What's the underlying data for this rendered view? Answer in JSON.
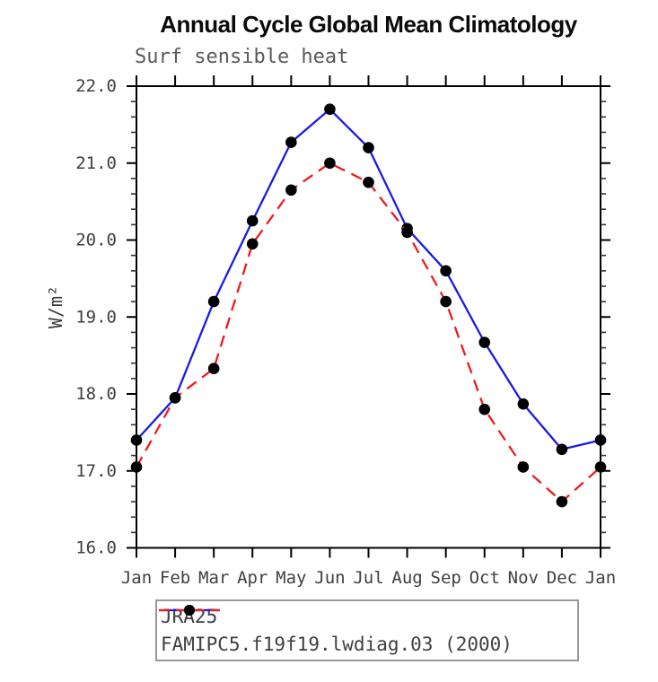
{
  "chart_data": {
    "type": "line",
    "title": "Annual Cycle Global Mean Climatology",
    "subtitle": "Surf sensible heat",
    "ylabel": "W/m²",
    "xlabel": "",
    "x": [
      "Jan",
      "Feb",
      "Mar",
      "Apr",
      "May",
      "Jun",
      "Jul",
      "Aug",
      "Sep",
      "Oct",
      "Nov",
      "Dec",
      "Jan"
    ],
    "ylim": [
      16.0,
      22.0
    ],
    "ytick_step": 1.0,
    "yminor_step": 0.2,
    "ytick_labels": [
      "16.0",
      "17.0",
      "18.0",
      "19.0",
      "20.0",
      "21.0",
      "22.0"
    ],
    "grid": false,
    "legend_position": "bottom",
    "series": [
      {
        "name": "JRA25",
        "color": "#1a1ae8",
        "style": "solid",
        "marker": "dot",
        "marker_color": "#000000",
        "values": [
          17.4,
          17.95,
          19.2,
          20.25,
          21.27,
          21.7,
          21.2,
          20.15,
          19.6,
          18.67,
          17.87,
          17.28,
          17.4
        ]
      },
      {
        "name": "FAMIPC5.f19f19.lwdiag.03 (2000)",
        "color": "#ee1c1c",
        "style": "dashed",
        "marker": "dot",
        "marker_color": "#000000",
        "values": [
          17.05,
          17.95,
          18.33,
          19.95,
          20.65,
          21.0,
          20.75,
          20.1,
          19.2,
          17.8,
          17.05,
          16.6,
          17.05
        ]
      }
    ],
    "colors": {
      "axis": "#000000",
      "tick_label": "#3f3f3f",
      "subtitle_text": "#5a5a5a",
      "legend_border": "#989898",
      "legend_text": "#3f3f3f"
    }
  }
}
